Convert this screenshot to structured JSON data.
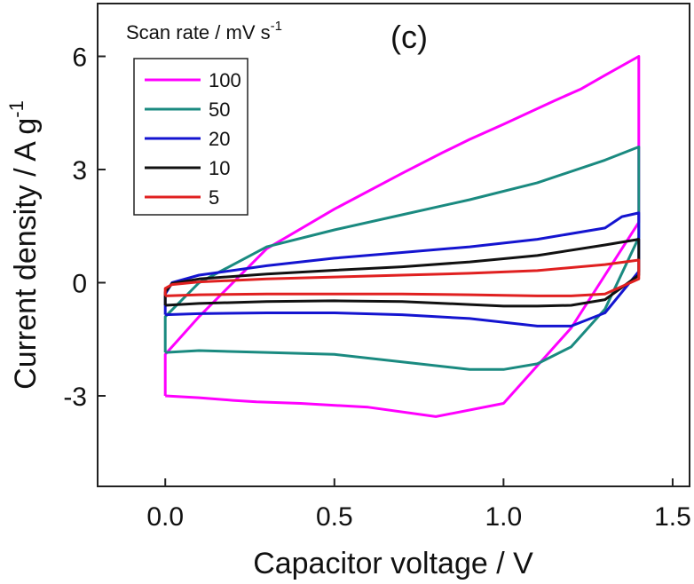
{
  "chart_data": {
    "type": "line",
    "panel_label": "(c)",
    "xlabel": "Capacitor voltage / V",
    "ylabel": "Current density / A g",
    "ylabel_superscript": "-1",
    "legend_title": "Scan rate / mV s",
    "legend_title_superscript": "-1",
    "legend_position": "top-left",
    "xlim": [
      -0.2,
      1.55
    ],
    "ylim": [
      -5.4,
      7.4
    ],
    "x_ticks": [
      0.0,
      0.5,
      1.0,
      1.5
    ],
    "x_tick_labels": [
      "0.0",
      "0.5",
      "1.0",
      "1.5"
    ],
    "y_ticks": [
      6,
      3,
      0,
      -3
    ],
    "y_tick_labels": [
      "6",
      "3",
      "0",
      "-3"
    ],
    "grid": false,
    "series": [
      {
        "name": "100",
        "color": "#ff00ff",
        "x": [
          0.0,
          0.1,
          0.2,
          0.27,
          0.4,
          0.6,
          0.8,
          1.0,
          1.2,
          1.4,
          1.4,
          1.3,
          1.23,
          1.15,
          1.0,
          0.9,
          0.82,
          0.7,
          0.5,
          0.3,
          0.1,
          0.0,
          0.0
        ],
        "y": [
          -3.0,
          -3.05,
          -3.12,
          -3.16,
          -3.2,
          -3.3,
          -3.55,
          -3.2,
          -1.2,
          1.6,
          6.0,
          5.5,
          5.14,
          4.82,
          4.2,
          3.8,
          3.45,
          2.9,
          1.95,
          0.9,
          -0.9,
          -1.9,
          -3.0
        ]
      },
      {
        "name": "50",
        "color": "#1a8a80",
        "x": [
          0.0,
          0.1,
          0.3,
          0.5,
          0.7,
          0.9,
          1.0,
          1.1,
          1.2,
          1.3,
          1.4,
          1.4,
          1.3,
          1.1,
          0.9,
          0.7,
          0.5,
          0.3,
          0.1,
          0.0,
          0.0
        ],
        "y": [
          -1.85,
          -1.8,
          -1.85,
          -1.9,
          -2.1,
          -2.3,
          -2.3,
          -2.15,
          -1.7,
          -0.7,
          1.2,
          3.6,
          3.25,
          2.65,
          2.2,
          1.8,
          1.4,
          0.95,
          0.0,
          -0.9,
          -1.85
        ]
      },
      {
        "name": "20",
        "color": "#1414d0",
        "x": [
          0.0,
          0.1,
          0.3,
          0.5,
          0.7,
          0.9,
          1.0,
          1.1,
          1.2,
          1.3,
          1.4,
          1.4,
          1.35,
          1.3,
          1.1,
          0.9,
          0.7,
          0.5,
          0.3,
          0.1,
          0.02,
          0.0,
          0.0
        ],
        "y": [
          -0.85,
          -0.82,
          -0.8,
          -0.8,
          -0.85,
          -0.95,
          -1.05,
          -1.15,
          -1.15,
          -0.8,
          0.3,
          1.85,
          1.75,
          1.45,
          1.15,
          0.95,
          0.8,
          0.65,
          0.45,
          0.2,
          0.0,
          -0.3,
          -0.85
        ]
      },
      {
        "name": "10",
        "color": "#111111",
        "x": [
          0.0,
          0.1,
          0.3,
          0.5,
          0.7,
          0.9,
          1.0,
          1.1,
          1.2,
          1.3,
          1.4,
          1.4,
          1.3,
          1.1,
          0.9,
          0.7,
          0.5,
          0.3,
          0.1,
          0.02,
          0.0,
          0.0
        ],
        "y": [
          -0.6,
          -0.55,
          -0.5,
          -0.48,
          -0.5,
          -0.58,
          -0.62,
          -0.62,
          -0.6,
          -0.45,
          0.2,
          1.15,
          1.0,
          0.72,
          0.55,
          0.42,
          0.33,
          0.23,
          0.1,
          -0.02,
          -0.25,
          -0.6
        ]
      },
      {
        "name": "5",
        "color": "#e02020",
        "x": [
          0.0,
          0.1,
          0.3,
          0.5,
          0.7,
          0.9,
          1.1,
          1.2,
          1.3,
          1.4,
          1.4,
          1.3,
          1.1,
          0.9,
          0.7,
          0.5,
          0.3,
          0.1,
          0.02,
          0.0,
          0.0
        ],
        "y": [
          -0.35,
          -0.32,
          -0.3,
          -0.3,
          -0.3,
          -0.32,
          -0.35,
          -0.35,
          -0.3,
          0.1,
          0.6,
          0.48,
          0.32,
          0.25,
          0.2,
          0.15,
          0.1,
          0.02,
          -0.05,
          -0.15,
          -0.35
        ]
      }
    ]
  }
}
